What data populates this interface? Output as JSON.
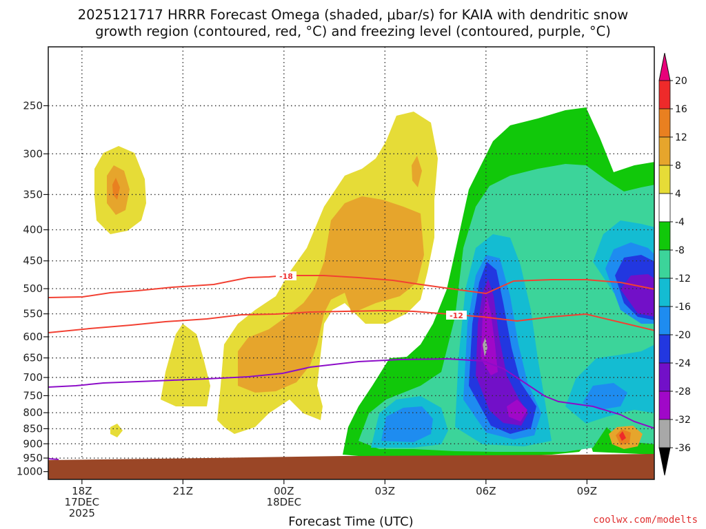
{
  "chart_data": {
    "type": "time-height contour",
    "title_lines": [
      "2025121717 HRRR Forecast Omega (shaded, μbar/s) for KAIA with dendritic snow",
      "growth region (contoured, red, °C) and freezing level (contoured, purple, °C)"
    ],
    "xlabel": "Forecast Time (UTC)",
    "x_ticks": [
      {
        "label": [
          "18Z",
          "17DEC",
          "2025"
        ],
        "hour": 0
      },
      {
        "label": [
          "21Z"
        ],
        "hour": 3
      },
      {
        "label": [
          "00Z",
          "18DEC"
        ],
        "hour": 6
      },
      {
        "label": [
          "03Z"
        ],
        "hour": 9
      },
      {
        "label": [
          "06Z"
        ],
        "hour": 12
      },
      {
        "label": [
          "09Z"
        ],
        "hour": 15
      }
    ],
    "x_range_hours": [
      -1,
      17
    ],
    "y_ticks": [
      250,
      300,
      350,
      400,
      450,
      500,
      550,
      600,
      650,
      700,
      750,
      800,
      850,
      900,
      950,
      1000
    ],
    "y_range_hPa": [
      200,
      1030
    ],
    "y_scale": "log",
    "grid": true,
    "colorbar": {
      "labels": [
        "20",
        "16",
        "12",
        "8",
        "4",
        "-4",
        "-8",
        "-12",
        "-16",
        "-20",
        "-24",
        "-28",
        "-32",
        "-36"
      ],
      "colors": [
        "#e8007a",
        "#ee2a2a",
        "#e98020",
        "#e6a52c",
        "#e6dc37",
        "#ffffff",
        "#11c80a",
        "#3cd49a",
        "#14bcd2",
        "#1e8cf0",
        "#2237e0",
        "#7210c8",
        "#a008c8",
        "#a8a8a8",
        "#000000"
      ]
    },
    "contour_labels": [
      {
        "text": "-18",
        "hour": 5.9,
        "hPa": 490
      },
      {
        "text": "-12",
        "hour": 11.6,
        "hPa": 560
      }
    ],
    "line_colors": {
      "dgz": "#f24032",
      "freezing": "#8c0cc8",
      "ground": "#9a4626"
    },
    "credit": "coolwx.com/modelts"
  }
}
